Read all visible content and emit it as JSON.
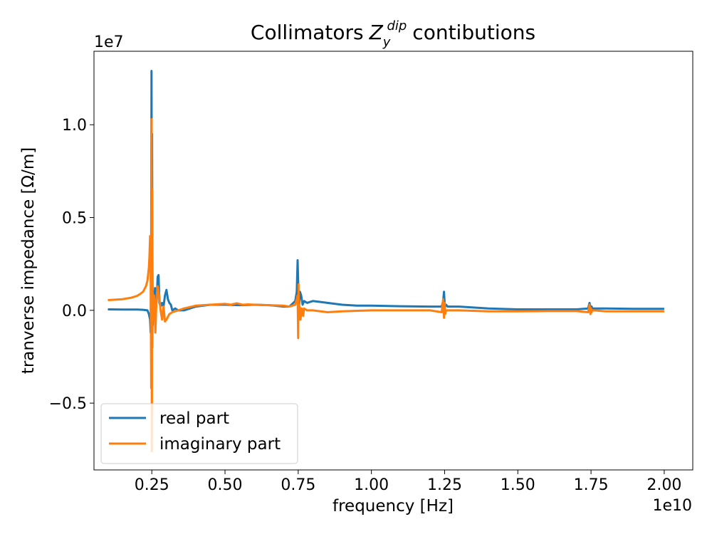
{
  "chart_data": {
    "type": "line",
    "title": "Collimators",
    "title_math": {
      "symbol": "Z",
      "subscript": "y",
      "superscript": "dip"
    },
    "title_suffix": "contibutions",
    "xlabel": "frequency [Hz]",
    "ylabel": "tranverse impedance [Ω/m]",
    "x_offset_label": "1e10",
    "y_offset_label": "1e7",
    "x_ticks": [
      0.25,
      0.5,
      0.75,
      1.0,
      1.25,
      1.5,
      1.75,
      2.0
    ],
    "x_tick_labels": [
      "0.25",
      "0.50",
      "0.75",
      "1.00",
      "1.25",
      "1.50",
      "1.75",
      "2.00"
    ],
    "y_ticks": [
      -0.5,
      0.0,
      0.5,
      1.0
    ],
    "y_tick_labels": [
      "−0.5",
      "0.0",
      "0.5",
      "1.0"
    ],
    "xlim": [
      0.0525,
      2.0975
    ],
    "ylim": [
      -0.86,
      1.396
    ],
    "grid": false,
    "legend_position": "lower-left",
    "series": [
      {
        "name": "real part",
        "color": "#1f77b4",
        "x": [
          0.1,
          0.15,
          0.2,
          0.22,
          0.235,
          0.24,
          0.244,
          0.246,
          0.248,
          0.249,
          0.25,
          0.251,
          0.252,
          0.253,
          0.254,
          0.256,
          0.258,
          0.261,
          0.264,
          0.267,
          0.27,
          0.273,
          0.276,
          0.28,
          0.285,
          0.29,
          0.295,
          0.3,
          0.305,
          0.31,
          0.315,
          0.32,
          0.33,
          0.34,
          0.36,
          0.4,
          0.45,
          0.5,
          0.55,
          0.6,
          0.65,
          0.7,
          0.72,
          0.74,
          0.745,
          0.748,
          0.75,
          0.751,
          0.753,
          0.756,
          0.76,
          0.765,
          0.77,
          0.78,
          0.8,
          0.85,
          0.9,
          0.95,
          1.0,
          1.1,
          1.2,
          1.24,
          1.245,
          1.248,
          1.25,
          1.252,
          1.255,
          1.26,
          1.27,
          1.3,
          1.4,
          1.5,
          1.6,
          1.7,
          1.74,
          1.745,
          1.748,
          1.75,
          1.752,
          1.755,
          1.76,
          1.8,
          1.9,
          2.0
        ],
        "y": [
          0.005,
          0.004,
          0.004,
          0.003,
          0.0,
          -0.02,
          -0.05,
          -0.12,
          0.4,
          1.29,
          0.6,
          0.95,
          0.3,
          -0.08,
          0.05,
          0.1,
          0.03,
          0.12,
          0.02,
          0.06,
          0.18,
          0.19,
          0.04,
          0.02,
          0.04,
          0.02,
          0.08,
          0.11,
          0.06,
          0.04,
          0.03,
          0.0,
          0.01,
          0.0,
          0.0,
          0.02,
          0.03,
          0.03,
          0.028,
          0.03,
          0.028,
          0.02,
          0.02,
          0.05,
          0.1,
          0.27,
          0.15,
          0.06,
          0.03,
          0.1,
          0.08,
          0.03,
          0.05,
          0.04,
          0.05,
          0.04,
          0.03,
          0.025,
          0.025,
          0.022,
          0.02,
          0.02,
          0.05,
          0.1,
          0.04,
          0.02,
          0.03,
          0.02,
          0.02,
          0.02,
          0.01,
          0.005,
          0.005,
          0.005,
          0.01,
          0.04,
          0.02,
          0.01,
          0.02,
          0.01,
          0.01,
          0.01,
          0.008,
          0.008
        ]
      },
      {
        "name": "imaginary part",
        "color": "#ff7f0e",
        "x": [
          0.1,
          0.15,
          0.18,
          0.2,
          0.21,
          0.22,
          0.23,
          0.235,
          0.24,
          0.242,
          0.244,
          0.246,
          0.247,
          0.248,
          0.249,
          0.2495,
          0.25,
          0.2505,
          0.251,
          0.2515,
          0.252,
          0.253,
          0.255,
          0.258,
          0.262,
          0.266,
          0.27,
          0.275,
          0.28,
          0.285,
          0.29,
          0.295,
          0.3,
          0.31,
          0.32,
          0.34,
          0.36,
          0.4,
          0.45,
          0.5,
          0.52,
          0.54,
          0.56,
          0.58,
          0.6,
          0.65,
          0.7,
          0.72,
          0.74,
          0.745,
          0.748,
          0.75,
          0.751,
          0.752,
          0.755,
          0.758,
          0.762,
          0.767,
          0.77,
          0.78,
          0.8,
          0.85,
          0.9,
          1.0,
          1.1,
          1.2,
          1.24,
          1.245,
          1.248,
          1.25,
          1.252,
          1.255,
          1.26,
          1.27,
          1.3,
          1.4,
          1.5,
          1.6,
          1.7,
          1.74,
          1.745,
          1.748,
          1.75,
          1.752,
          1.755,
          1.76,
          1.8,
          1.9,
          2.0
        ],
        "y": [
          0.055,
          0.06,
          0.068,
          0.078,
          0.088,
          0.1,
          0.13,
          0.16,
          0.23,
          0.29,
          0.4,
          0.2,
          -0.1,
          -0.42,
          0.6,
          1.03,
          -0.76,
          -0.55,
          0.65,
          0.2,
          -0.2,
          0.1,
          -0.05,
          0.08,
          -0.12,
          0.06,
          0.13,
          0.08,
          0.0,
          -0.05,
          0.02,
          -0.06,
          -0.05,
          -0.02,
          -0.01,
          0.0,
          0.01,
          0.025,
          0.03,
          0.035,
          0.03,
          0.038,
          0.03,
          0.032,
          0.03,
          0.028,
          0.025,
          0.02,
          0.03,
          0.06,
          0.08,
          -0.15,
          0.14,
          -0.05,
          0.02,
          -0.05,
          0.01,
          -0.03,
          0.01,
          0.0,
          0.0,
          -0.01,
          -0.005,
          0.0,
          0.0,
          0.0,
          -0.01,
          0.06,
          -0.04,
          0.04,
          -0.02,
          0.0,
          0.0,
          0.0,
          0.0,
          -0.005,
          -0.005,
          -0.004,
          -0.004,
          -0.01,
          0.03,
          -0.02,
          0.01,
          -0.01,
          0.0,
          0.0,
          -0.005,
          -0.005,
          -0.005
        ]
      }
    ]
  }
}
